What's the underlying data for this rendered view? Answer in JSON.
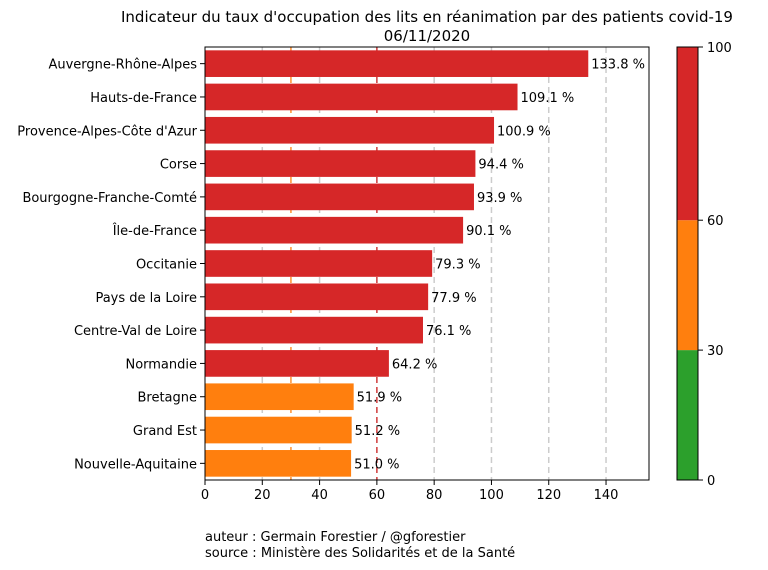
{
  "chart_data": {
    "type": "bar",
    "orientation": "horizontal",
    "title": "Indicateur du taux d'occupation des lits en réanimation par des patients covid-19",
    "subtitle": "06/11/2020",
    "categories": [
      "Auvergne-Rhône-Alpes",
      "Hauts-de-France",
      "Provence-Alpes-Côte d'Azur",
      "Corse",
      "Bourgogne-Franche-Comté",
      "Île-de-France",
      "Occitanie",
      "Pays de la Loire",
      "Centre-Val de Loire",
      "Normandie",
      "Bretagne",
      "Grand Est",
      "Nouvelle-Aquitaine"
    ],
    "values": [
      133.8,
      109.1,
      100.9,
      94.4,
      93.9,
      90.1,
      79.3,
      77.9,
      76.1,
      64.2,
      51.9,
      51.2,
      51.0
    ],
    "value_labels": [
      "133.8 %",
      "109.1 %",
      "100.9 %",
      "94.4 %",
      "93.9 %",
      "90.1 %",
      "79.3 %",
      "77.9 %",
      "76.1 %",
      "64.2 %",
      "51.9 %",
      "51.2 %",
      "51.0 %"
    ],
    "xlim": [
      0,
      155
    ],
    "xticks": [
      0,
      20,
      40,
      60,
      80,
      100,
      120,
      140
    ],
    "grid": "vertical dashed",
    "reference_lines": [
      {
        "value": 30,
        "color": "#ff7f0e"
      },
      {
        "value": 60,
        "color": "#d62728"
      }
    ],
    "colorbar": {
      "min": 0,
      "max": 100,
      "ticks": [
        0,
        30,
        60,
        100
      ],
      "segments": [
        {
          "from": 0,
          "to": 30,
          "color": "#2ca02c"
        },
        {
          "from": 30,
          "to": 60,
          "color": "#ff7f0e"
        },
        {
          "from": 60,
          "to": 100,
          "color": "#d62728"
        }
      ]
    },
    "colors": {
      "high": "#d62728",
      "medium": "#ff7f0e",
      "low": "#2ca02c",
      "grid": "#cccccc"
    }
  },
  "footer": {
    "author": "auteur : Germain Forestier / @gforestier",
    "source": "source : Ministère des Solidarités et de la Santé"
  }
}
